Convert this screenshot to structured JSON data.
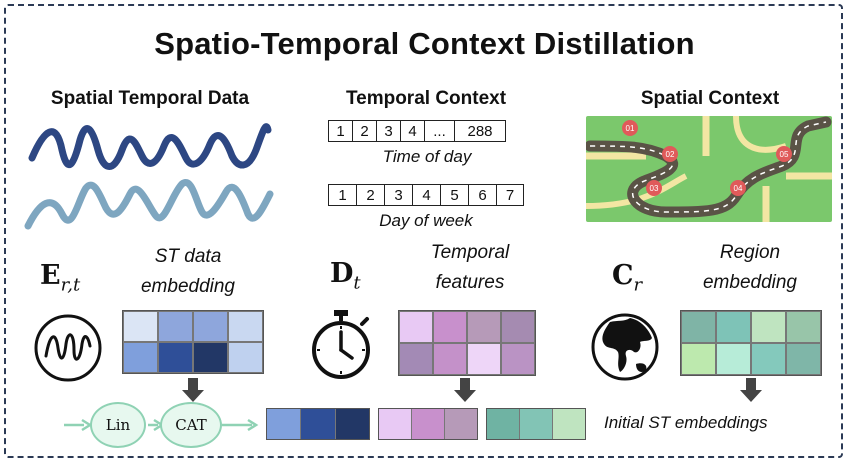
{
  "title": "Spatio-Temporal Context Distillation",
  "sections": {
    "spatial_temporal": {
      "label": "Spatial Temporal Data",
      "symbol": "E",
      "subscript": "r,t",
      "caption_line1": "ST data",
      "caption_line2": "embedding"
    },
    "temporal": {
      "label": "Temporal Context",
      "symbol": "D",
      "subscript": "t",
      "caption_line1": "Temporal",
      "caption_line2": "features"
    },
    "spatial": {
      "label": "Spatial Context",
      "symbol": "C",
      "subscript": "r",
      "caption_line1": "Region",
      "caption_line2": "embedding"
    }
  },
  "time_of_day": {
    "cells": [
      "1",
      "2",
      "3",
      "4",
      "...",
      "288"
    ],
    "caption": "Time of day"
  },
  "day_of_week": {
    "cells": [
      "1",
      "2",
      "3",
      "4",
      "5",
      "6",
      "7"
    ],
    "caption": "Day of week"
  },
  "map_markers": [
    "01",
    "02",
    "03",
    "04",
    "05"
  ],
  "nodes": {
    "lin": "Lin",
    "cat": "CAT"
  },
  "initial_label": "Initial ST embeddings",
  "colors": {
    "st_grid": [
      "#dbe5f5",
      "#8ea6dc",
      "#8ea6dc",
      "#c9d8f1",
      "#7f9fdc",
      "#2f4f98",
      "#223766",
      "#bfd1ef"
    ],
    "temporal_grid": [
      "#e8c9f4",
      "#c890cc",
      "#b69ab8",
      "#a58bb1",
      "#a38ab5",
      "#c491c9",
      "#eed6f8",
      "#ba93c4"
    ],
    "region_grid": [
      "#7fb4a6",
      "#7ec3b7",
      "#bfe4c0",
      "#98c5a9",
      "#bde9ae",
      "#b7ecd8",
      "#84c9bc",
      "#7fb6a8"
    ],
    "st_strip": [
      "#7f9fdc",
      "#2f4f98",
      "#223766"
    ],
    "temporal_strip": [
      "#e8c9f4",
      "#c890cc",
      "#b69ab8"
    ],
    "region_strip": [
      "#6fb3a3",
      "#82c4b5",
      "#bfe4c0"
    ],
    "wave_dark": "#2d4783",
    "wave_light": "#7ea6c0",
    "map_land": "#7bc86c",
    "map_road": "#5a5346",
    "marker": "#e05a5a",
    "arrow": "#444444",
    "node_border": "#8fd2b4"
  }
}
